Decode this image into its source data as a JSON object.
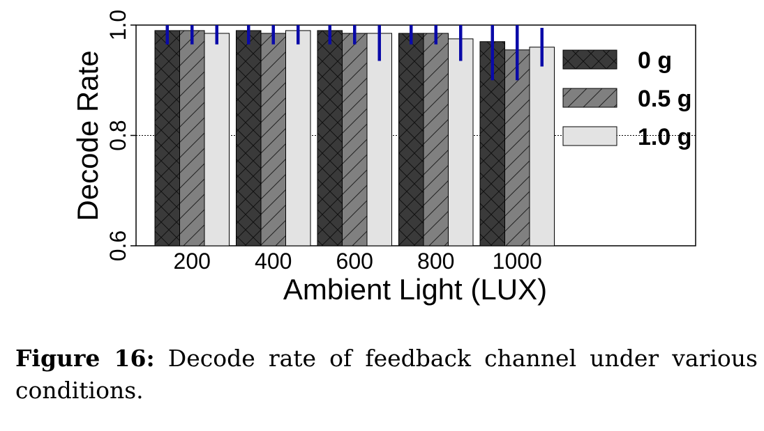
{
  "chart_data": {
    "type": "bar",
    "xlabel": "Ambient Light (LUX)",
    "ylabel": "Decode Rate",
    "categories": [
      "200",
      "400",
      "600",
      "800",
      "1000"
    ],
    "ylim": [
      0.6,
      1.0
    ],
    "yticks": [
      "0.6",
      "0.8",
      "1.0"
    ],
    "reference_line": 0.8,
    "legend_position": "right",
    "series": [
      {
        "name": "0 g",
        "color": "#3a3a3a",
        "pattern": "crosshatch",
        "values": [
          0.99,
          0.99,
          0.99,
          0.985,
          0.97
        ],
        "error": [
          0.025,
          0.025,
          0.025,
          0.02,
          0.07
        ]
      },
      {
        "name": "0.5 g",
        "color": "#808080",
        "pattern": "diagonal",
        "values": [
          0.99,
          0.985,
          0.985,
          0.985,
          0.955
        ],
        "error": [
          0.025,
          0.02,
          0.02,
          0.02,
          0.055
        ]
      },
      {
        "name": "1.0 g",
        "color": "#e3e3e3",
        "pattern": "none",
        "values": [
          0.985,
          0.99,
          0.985,
          0.975,
          0.96
        ],
        "error": [
          0.02,
          0.025,
          0.05,
          0.04,
          0.035
        ]
      }
    ],
    "error_bar_color": "#0a0aa8"
  },
  "caption": {
    "label": "Figure 16:",
    "text": " Decode rate of feedback channel under various conditions."
  }
}
